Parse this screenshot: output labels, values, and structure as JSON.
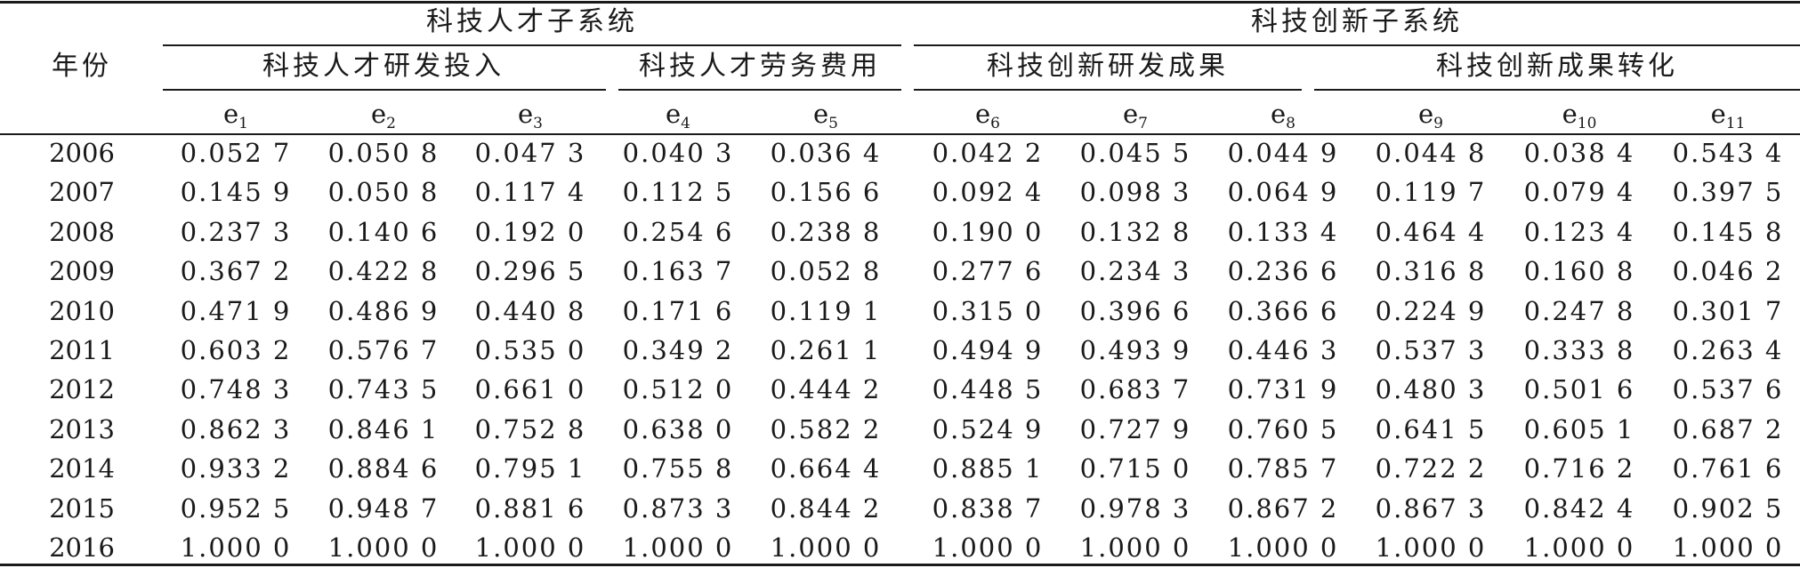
{
  "table": {
    "year_header": "年份",
    "groups": [
      {
        "label": "科技人才子系统"
      },
      {
        "label": "科技创新子系统"
      }
    ],
    "subgroups": [
      {
        "label": "科技人才研发投入"
      },
      {
        "label": "科技人才劳务费用"
      },
      {
        "label": "科技创新研发成果"
      },
      {
        "label": "科技创新成果转化"
      }
    ],
    "indicators": [
      {
        "base": "e",
        "sub": "1"
      },
      {
        "base": "e",
        "sub": "2"
      },
      {
        "base": "e",
        "sub": "3"
      },
      {
        "base": "e",
        "sub": "4"
      },
      {
        "base": "e",
        "sub": "5"
      },
      {
        "base": "e",
        "sub": "6"
      },
      {
        "base": "e",
        "sub": "7"
      },
      {
        "base": "e",
        "sub": "8"
      },
      {
        "base": "e",
        "sub": "9"
      },
      {
        "base": "e",
        "sub": "10"
      },
      {
        "base": "e",
        "sub": "11"
      }
    ],
    "rows": [
      {
        "year": "2006",
        "values": [
          "0.052 7",
          "0.050 8",
          "0.047 3",
          "0.040 3",
          "0.036 4",
          "0.042 2",
          "0.045 5",
          "0.044 9",
          "0.044 8",
          "0.038 4",
          "0.543 4"
        ]
      },
      {
        "year": "2007",
        "values": [
          "0.145 9",
          "0.050 8",
          "0.117 4",
          "0.112 5",
          "0.156 6",
          "0.092 4",
          "0.098 3",
          "0.064 9",
          "0.119 7",
          "0.079 4",
          "0.397 5"
        ]
      },
      {
        "year": "2008",
        "values": [
          "0.237 3",
          "0.140 6",
          "0.192 0",
          "0.254 6",
          "0.238 8",
          "0.190 0",
          "0.132 8",
          "0.133 4",
          "0.464 4",
          "0.123 4",
          "0.145 8"
        ]
      },
      {
        "year": "2009",
        "values": [
          "0.367 2",
          "0.422 8",
          "0.296 5",
          "0.163 7",
          "0.052 8",
          "0.277 6",
          "0.234 3",
          "0.236 6",
          "0.316 8",
          "0.160 8",
          "0.046 2"
        ]
      },
      {
        "year": "2010",
        "values": [
          "0.471 9",
          "0.486 9",
          "0.440 8",
          "0.171 6",
          "0.119 1",
          "0.315 0",
          "0.396 6",
          "0.366 6",
          "0.224 9",
          "0.247 8",
          "0.301 7"
        ]
      },
      {
        "year": "2011",
        "values": [
          "0.603 2",
          "0.576 7",
          "0.535 0",
          "0.349 2",
          "0.261 1",
          "0.494 9",
          "0.493 9",
          "0.446 3",
          "0.537 3",
          "0.333 8",
          "0.263 4"
        ]
      },
      {
        "year": "2012",
        "values": [
          "0.748 3",
          "0.743 5",
          "0.661 0",
          "0.512 0",
          "0.444 2",
          "0.448 5",
          "0.683 7",
          "0.731 9",
          "0.480 3",
          "0.501 6",
          "0.537 6"
        ]
      },
      {
        "year": "2013",
        "values": [
          "0.862 3",
          "0.846 1",
          "0.752 8",
          "0.638 0",
          "0.582 2",
          "0.524 9",
          "0.727 9",
          "0.760 5",
          "0.641 5",
          "0.605 1",
          "0.687 2"
        ]
      },
      {
        "year": "2014",
        "values": [
          "0.933 2",
          "0.884 6",
          "0.795 1",
          "0.755 8",
          "0.664 4",
          "0.885 1",
          "0.715 0",
          "0.785 7",
          "0.722 2",
          "0.716 2",
          "0.761 6"
        ]
      },
      {
        "year": "2015",
        "values": [
          "0.952 5",
          "0.948 7",
          "0.881 6",
          "0.873 3",
          "0.844 2",
          "0.838 7",
          "0.978 3",
          "0.867 2",
          "0.867 3",
          "0.842 4",
          "0.902 5"
        ]
      },
      {
        "year": "2016",
        "values": [
          "1.000 0",
          "1.000 0",
          "1.000 0",
          "1.000 0",
          "1.000 0",
          "1.000 0",
          "1.000 0",
          "1.000 0",
          "1.000 0",
          "1.000 0",
          "1.000 0"
        ]
      }
    ]
  }
}
